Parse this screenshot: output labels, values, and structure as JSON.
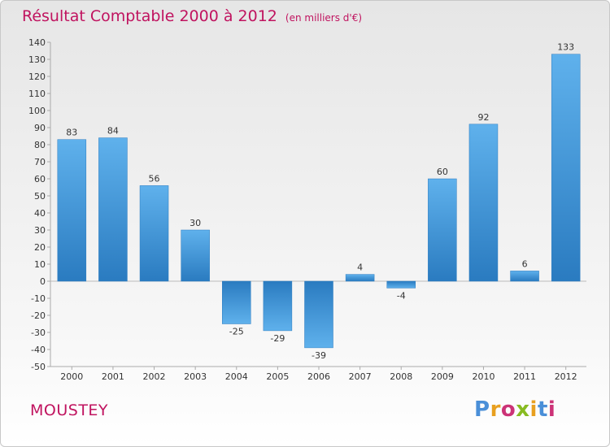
{
  "chart_data": {
    "type": "bar",
    "title": "Résultat Comptable 2000 à 2012",
    "subtitle": "(en milliers d'€)",
    "categories": [
      "2000",
      "2001",
      "2002",
      "2003",
      "2004",
      "2005",
      "2006",
      "2007",
      "2008",
      "2009",
      "2010",
      "2011",
      "2012"
    ],
    "values": [
      83,
      84,
      56,
      30,
      -25,
      -29,
      -39,
      4,
      -4,
      60,
      92,
      6,
      133
    ],
    "ylim": [
      -50,
      140
    ],
    "yticks": [
      -50,
      -40,
      -30,
      -20,
      -10,
      0,
      10,
      20,
      30,
      40,
      50,
      60,
      70,
      80,
      90,
      100,
      110,
      120,
      130,
      140
    ],
    "grid": false,
    "xlabel": "",
    "ylabel": "",
    "bar_color": "#3d8fd0"
  },
  "footer": {
    "commune": "MOUSTEY",
    "brand": "Proxiti",
    "brand_colors": [
      "#4a8fd8",
      "#e8a020",
      "#cc3377",
      "#88bb22",
      "#e8a020",
      "#4a8fd8",
      "#cc3377"
    ]
  }
}
